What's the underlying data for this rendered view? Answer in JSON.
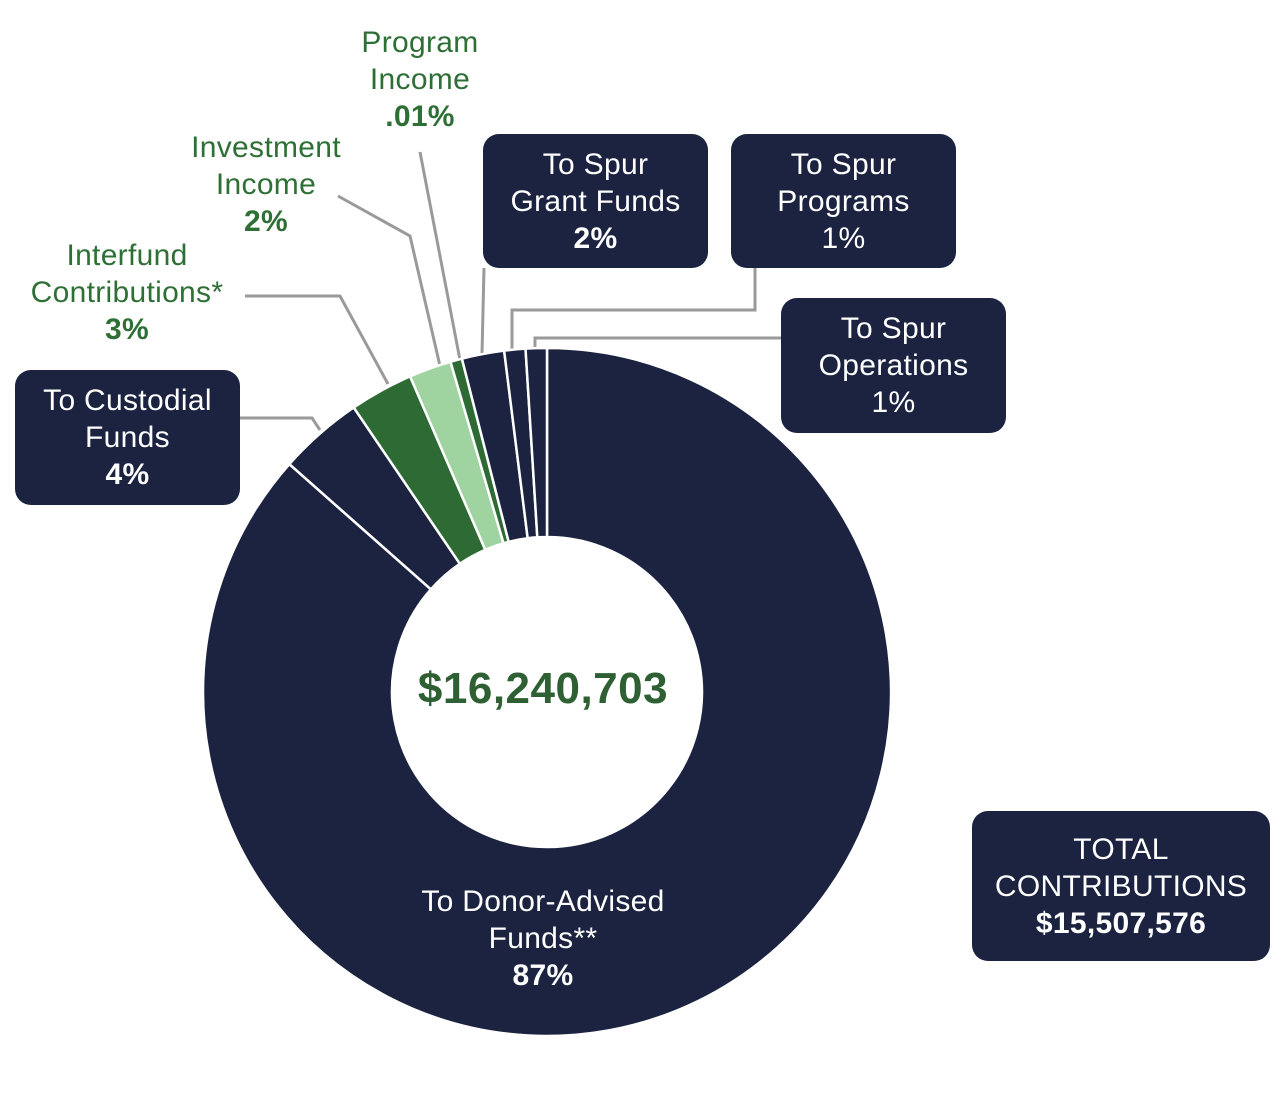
{
  "chart_data": {
    "type": "pie",
    "variant": "donut",
    "center_value": "$16,240,703",
    "slices": [
      {
        "label": [
          "To Donor-Advised",
          "Funds**"
        ],
        "percent_label": "87%",
        "value": 87,
        "color": "#1c2340"
      },
      {
        "label": [
          "To Custodial",
          "Funds"
        ],
        "percent_label": "4%",
        "value": 4,
        "color": "#1c2340"
      },
      {
        "label": [
          "Interfund",
          "Contributions*"
        ],
        "percent_label": "3%",
        "value": 3,
        "color": "#2e6b34"
      },
      {
        "label": [
          "Investment",
          "Income"
        ],
        "percent_label": "2%",
        "value": 2,
        "color": "#9fd39f"
      },
      {
        "label": [
          "Program",
          "Income"
        ],
        "percent_label": ".01%",
        "value": 0.01,
        "color": "#2e6b34"
      },
      {
        "label": [
          "To Spur",
          "Grant Funds"
        ],
        "percent_label": "2%",
        "value": 2,
        "color": "#1c2340"
      },
      {
        "label": [
          "To Spur",
          "Programs"
        ],
        "percent_label": "1%",
        "value": 1,
        "color": "#1c2340"
      },
      {
        "label": [
          "To Spur",
          "Operations"
        ],
        "percent_label": "1%",
        "value": 1,
        "color": "#1c2340"
      }
    ],
    "total_box": {
      "line1": "TOTAL",
      "line2": "CONTRIBUTIONS",
      "value": "$15,507,576"
    }
  }
}
